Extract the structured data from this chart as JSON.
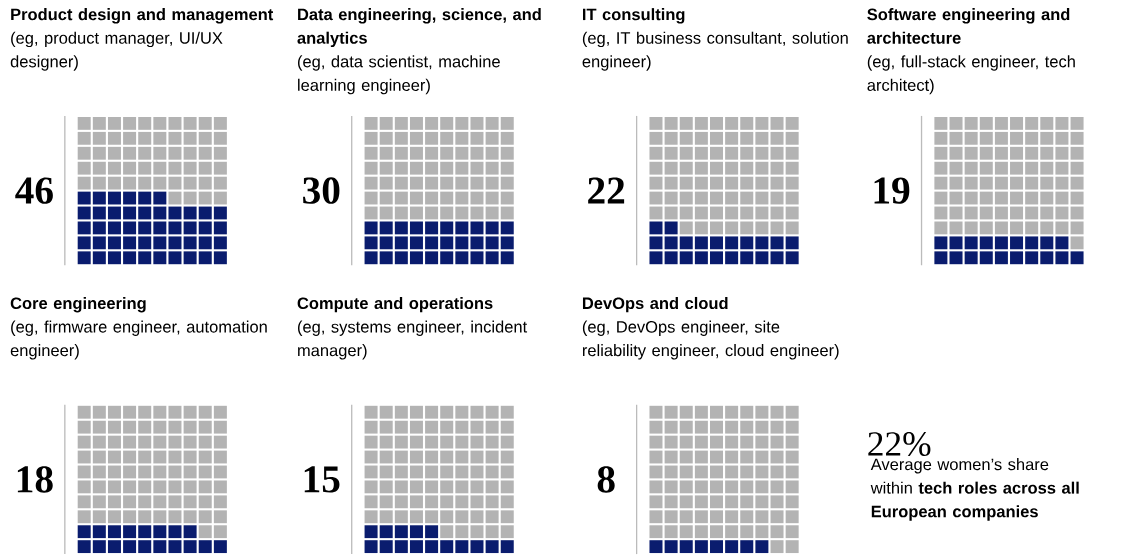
{
  "chart_data": [
    {
      "type": "other",
      "title": "Product design and management",
      "subtitle": "(eg, product manager, UI/UX designer)",
      "values": [
        46
      ],
      "data_labels": true,
      "color": "#0a1c6e"
    },
    {
      "type": "other",
      "title": "Data engineering, science, and analytics",
      "subtitle": "(eg, data scientist, machine learning engineer)",
      "values": [
        30
      ],
      "data_labels": true,
      "color": "#0a1c6e"
    },
    {
      "type": "other",
      "title": "IT consulting",
      "subtitle": "(eg, IT business consultant, solution engineer)",
      "values": [
        22
      ],
      "data_labels": true,
      "color": "#0a1c6e"
    },
    {
      "type": "other",
      "title": "Software engineering and architecture",
      "subtitle": "(eg, full-stack engineer, tech architect)",
      "values": [
        19
      ],
      "data_labels": true,
      "color": "#0a1c6e"
    },
    {
      "type": "other",
      "title": "Core engineering",
      "subtitle": "(eg, firmware engineer, automation engineer)",
      "values": [
        18
      ],
      "data_labels": true,
      "color": "#0a1c6e"
    },
    {
      "type": "other",
      "title": "Compute and operations",
      "subtitle": "(eg, systems engineer, incident manager)",
      "values": [
        15
      ],
      "data_labels": true,
      "color": "#0a1c6e"
    },
    {
      "type": "other",
      "title": "DevOps and cloud",
      "subtitle": "(eg, DevOps engineer, site reliability engineer, cloud engineer)",
      "values": [
        8
      ],
      "data_labels": true,
      "color": "#0a1c6e"
    },
    {
      "type": "other",
      "title": "22%",
      "annotations": [
        "Average women’s share within **tech roles across all European companies**"
      ]
    }
  ]
}
